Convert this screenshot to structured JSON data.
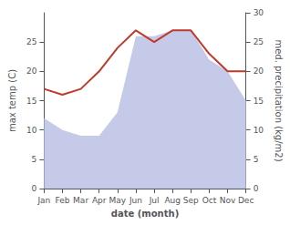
{
  "chart_data": {
    "type": "line",
    "categories": [
      "Jan",
      "Feb",
      "Mar",
      "Apr",
      "May",
      "Jun",
      "Jul",
      "Aug",
      "Sep",
      "Oct",
      "Nov",
      "Dec"
    ],
    "xlabel": "date (month)",
    "ylabel": "max temp (C)",
    "y2label": "med. precipitation (kg/m2)",
    "series": [
      {
        "type": "area",
        "color": "#c5cae9",
        "axis": "y2",
        "values": [
          12,
          10,
          9,
          9,
          13,
          26,
          26,
          27,
          27,
          22,
          20,
          15
        ]
      },
      {
        "type": "line",
        "color": "#c0392b",
        "values": [
          17,
          16,
          17,
          20,
          24,
          27,
          25,
          27,
          27,
          23,
          20,
          20
        ]
      }
    ],
    "ylim": [
      0,
      30
    ],
    "yticks": [
      0,
      5,
      10,
      15,
      20,
      25
    ],
    "y2lim": [
      0,
      30
    ],
    "y2ticks": [
      0,
      5,
      10,
      15,
      20,
      25,
      30
    ],
    "grid": false
  }
}
